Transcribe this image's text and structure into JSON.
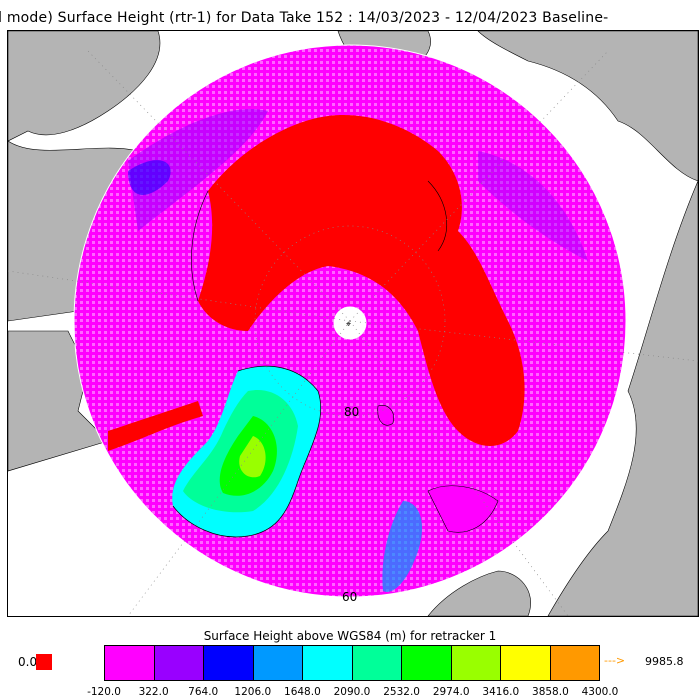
{
  "title": "ll mode) Surface Height (rtr-1) for Data Take 152 : 14/03/2023 - 12/04/2023 Baseline-",
  "map": {
    "lat_labels": [
      "80",
      "60"
    ],
    "no_data_color": "#b4b4b4",
    "ocean_color": "#ffffff",
    "dominant_colors": {
      "sea_ice": "#ff0000",
      "ocean_low": "#ff00ff",
      "greenland": "#00ff00"
    }
  },
  "legend": {
    "title": "Surface Height above WGS84 (m) for retracker 1",
    "zero_label": "0.0",
    "zero_color": "#ff0000",
    "overflow_arrow": "--->",
    "overflow_value": "9985.8",
    "overflow_color": "#ff9900",
    "ticks": [
      "-120.0",
      "322.0",
      "764.0",
      "1206.0",
      "1648.0",
      "2090.0",
      "2532.0",
      "2974.0",
      "3416.0",
      "3858.0",
      "4300.0"
    ],
    "colors": [
      "#ff00ff",
      "#9900ff",
      "#0000ff",
      "#0099ff",
      "#00ffff",
      "#00ff99",
      "#00ff00",
      "#99ff00",
      "#ffff00",
      "#ff9900"
    ]
  }
}
